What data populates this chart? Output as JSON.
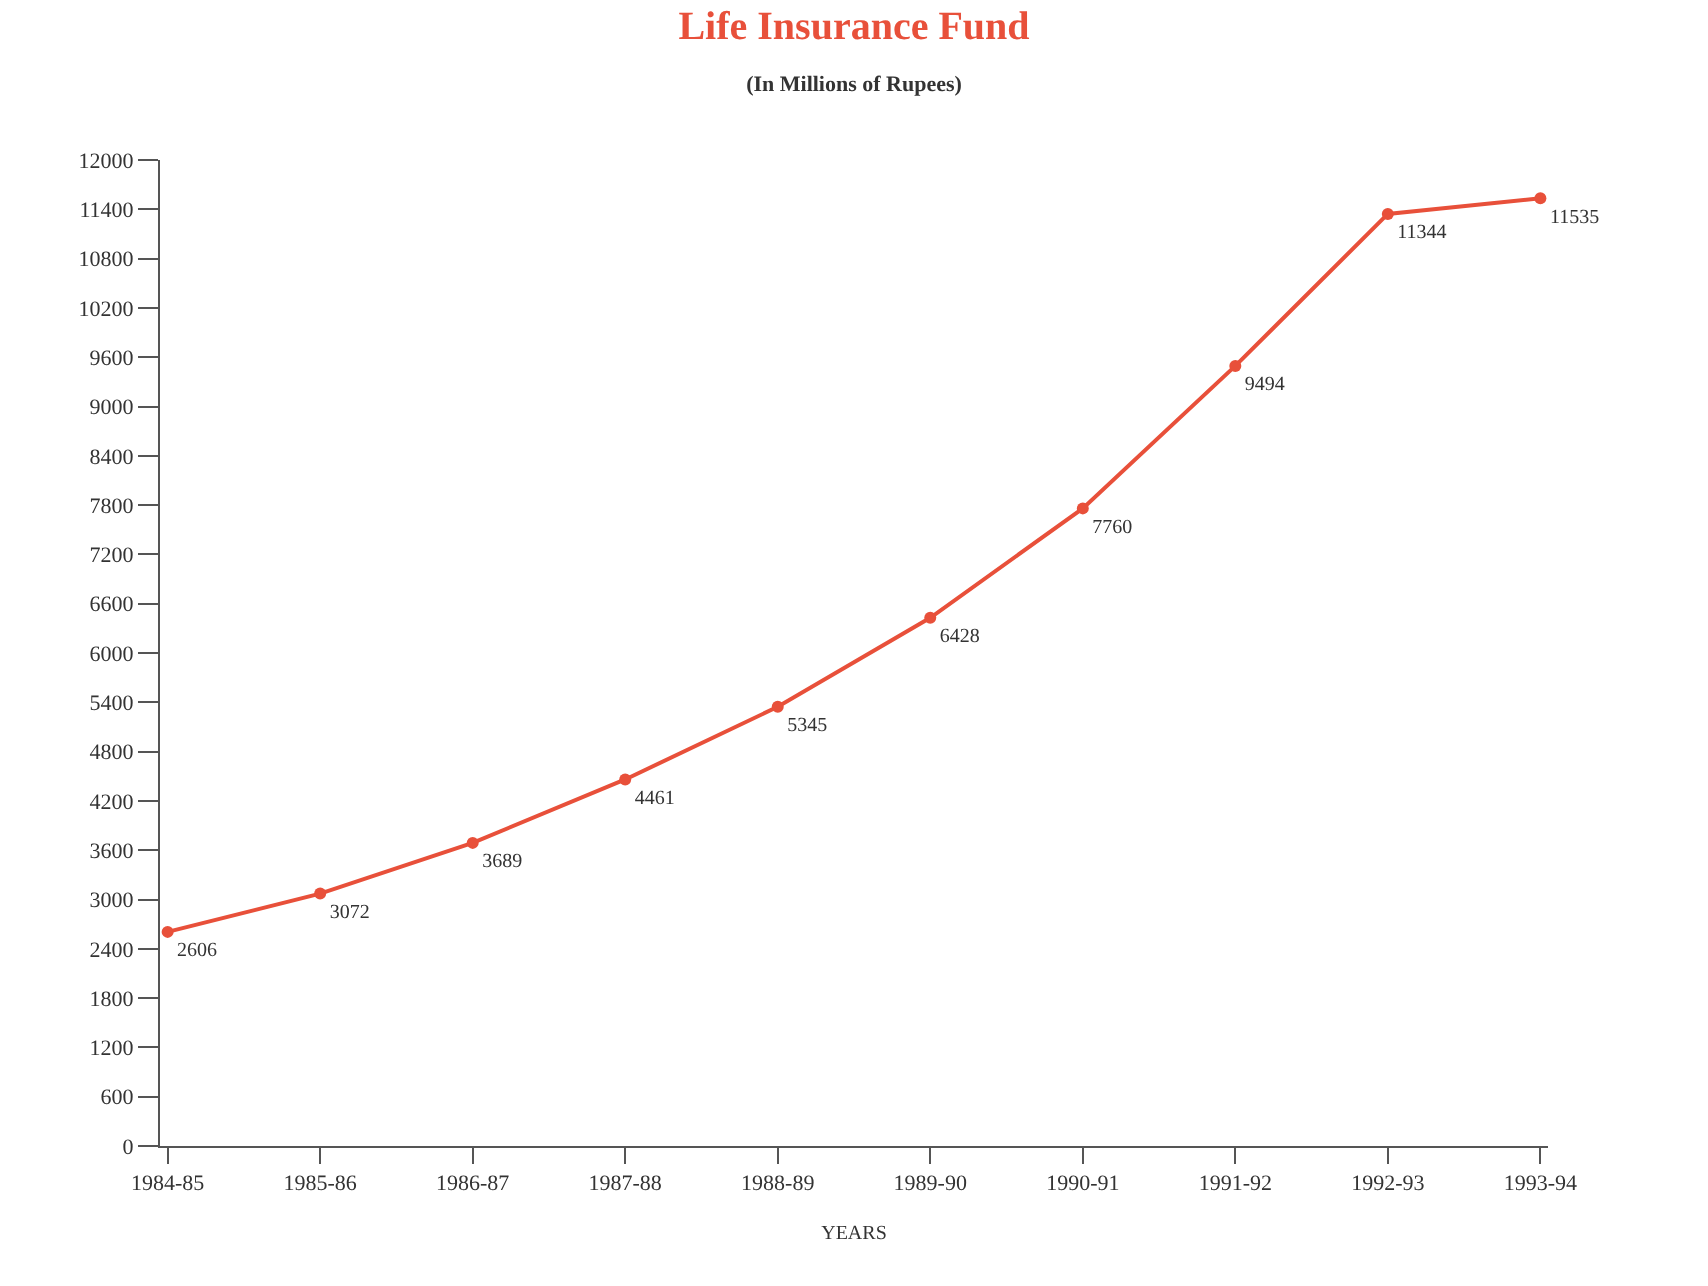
{
  "chart_data": {
    "type": "line",
    "title": "Life Insurance Fund",
    "subtitle": "(In Millions of Rupees)",
    "xlabel": "YEARS",
    "categories": [
      "1984-85",
      "1985-86",
      "1986-87",
      "1987-88",
      "1988-89",
      "1989-90",
      "1990-91",
      "1991-92",
      "1992-93",
      "1993-94"
    ],
    "series": [
      {
        "color": "#e8503a",
        "values": [
          2606,
          3072,
          3689,
          4461,
          5345,
          6428,
          7760,
          9494,
          11344,
          11535
        ]
      }
    ],
    "ylim": [
      0,
      12000
    ],
    "yticks": [
      0,
      600,
      1200,
      1800,
      2400,
      3000,
      3600,
      4200,
      4800,
      5400,
      6000,
      6600,
      7200,
      7800,
      8400,
      9000,
      9600,
      10200,
      10800,
      11400,
      12000
    ],
    "marker": "circle",
    "line_style": "solid",
    "data_labels": true
  }
}
